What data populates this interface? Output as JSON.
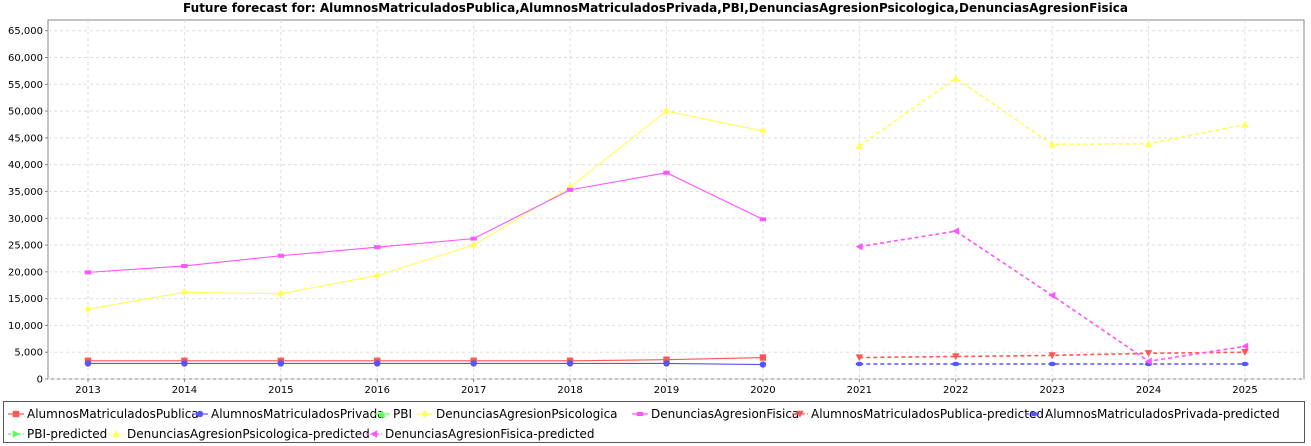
{
  "chart_data": {
    "type": "line",
    "title": "Future forecast for: AlumnosMatriculadosPublica,AlumnosMatriculadosPrivada,PBI,DenunciasAgresionPsicologica,DenunciasAgresionFisica",
    "xlabel": "",
    "ylabel": "",
    "x": [
      "2013",
      "2014",
      "2015",
      "2016",
      "2017",
      "2018",
      "2019",
      "2020",
      "2021",
      "2022",
      "2023",
      "2024",
      "2025"
    ],
    "y_ticks": [
      "0",
      "5,000",
      "10,000",
      "15,000",
      "20,000",
      "25,000",
      "30,000",
      "35,000",
      "40,000",
      "45,000",
      "50,000",
      "55,000",
      "60,000",
      "65,000"
    ],
    "ylim": [
      0,
      67000
    ],
    "grid": true,
    "legend_position": "bottom",
    "series": [
      {
        "name": "AlumnosMatriculadosPublica",
        "color": "#ff5555",
        "marker": "square",
        "dashed": false,
        "values": [
          3400,
          3400,
          3400,
          3400,
          3400,
          3400,
          3600,
          4000,
          null,
          null,
          null,
          null,
          null
        ]
      },
      {
        "name": "AlumnosMatriculadosPrivada",
        "color": "#5555ff",
        "marker": "circle",
        "dashed": false,
        "values": [
          2900,
          2900,
          2900,
          2900,
          2900,
          2900,
          2900,
          2700,
          null,
          null,
          null,
          null,
          null
        ]
      },
      {
        "name": "PBI",
        "color": "#55ff55",
        "marker": "triangle-up",
        "dashed": false,
        "values": [
          null,
          null,
          null,
          null,
          null,
          null,
          null,
          null,
          null,
          null,
          null,
          null,
          null
        ]
      },
      {
        "name": "DenunciasAgresionPsicologica",
        "color": "#ffff55",
        "marker": "diamond",
        "dashed": false,
        "values": [
          13000,
          16200,
          15900,
          19300,
          25000,
          35800,
          50000,
          46300,
          null,
          null,
          null,
          null,
          null
        ]
      },
      {
        "name": "DenunciasAgresionFisica",
        "color": "#ff55ff",
        "marker": "square-h",
        "dashed": false,
        "values": [
          19900,
          21100,
          23000,
          24600,
          26200,
          35300,
          38500,
          29800,
          null,
          null,
          null,
          null,
          null
        ]
      },
      {
        "name": "AlumnosMatriculadosPublica-predicted",
        "color": "#ff5555",
        "marker": "triangle-down",
        "dashed": true,
        "values": [
          null,
          null,
          null,
          null,
          null,
          null,
          null,
          null,
          4000,
          4200,
          4400,
          4800,
          5000
        ]
      },
      {
        "name": "AlumnosMatriculadosPrivada-predicted",
        "color": "#5555ff",
        "marker": "ellipse-h",
        "dashed": true,
        "values": [
          null,
          null,
          null,
          null,
          null,
          null,
          null,
          null,
          2800,
          2800,
          2800,
          2800,
          2800
        ]
      },
      {
        "name": "PBI-predicted",
        "color": "#55ff55",
        "marker": "triangle-right",
        "dashed": true,
        "values": [
          null,
          null,
          null,
          null,
          null,
          null,
          null,
          null,
          null,
          null,
          null,
          null,
          null
        ]
      },
      {
        "name": "DenunciasAgresionPsicologica-predicted",
        "color": "#ffff55",
        "marker": "triangle-up",
        "dashed": true,
        "values": [
          null,
          null,
          null,
          null,
          null,
          null,
          null,
          null,
          43500,
          56100,
          43800,
          43900,
          47500
        ]
      },
      {
        "name": "DenunciasAgresionFisica-predicted",
        "color": "#ff55ff",
        "marker": "triangle-left",
        "dashed": true,
        "values": [
          null,
          null,
          null,
          null,
          null,
          null,
          null,
          null,
          24700,
          27600,
          15600,
          3300,
          6100
        ]
      }
    ]
  }
}
